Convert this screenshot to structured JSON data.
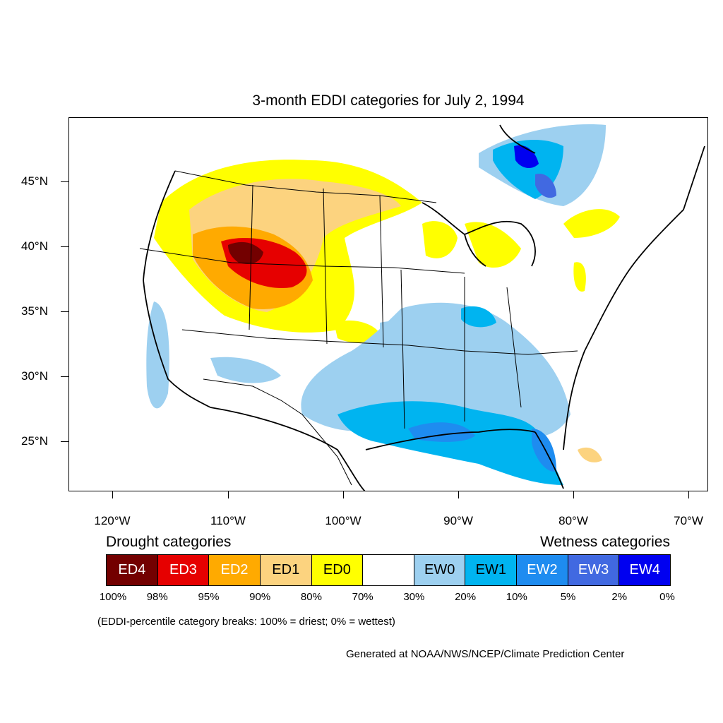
{
  "title": "3-month EDDI categories for July 2, 1994",
  "lat_labels": [
    "45°N",
    "40°N",
    "35°N",
    "30°N",
    "25°N"
  ],
  "lon_labels": [
    "120°W",
    "110°W",
    "100°W",
    "90°W",
    "80°W",
    "70°W"
  ],
  "legend": {
    "drought_heading": "Drought categories",
    "wetness_heading": "Wetness categories",
    "categories": [
      {
        "label": "ED4",
        "color": "#730000"
      },
      {
        "label": "ED3",
        "color": "#e60000"
      },
      {
        "label": "ED2",
        "color": "#ffaa00"
      },
      {
        "label": "ED1",
        "color": "#fcd37f"
      },
      {
        "label": "ED0",
        "color": "#ffff00"
      },
      {
        "label": "",
        "color": "#ffffff"
      },
      {
        "label": "EW0",
        "color": "#9dd0f0"
      },
      {
        "label": "EW1",
        "color": "#00b4f0"
      },
      {
        "label": "EW2",
        "color": "#1e8cf0"
      },
      {
        "label": "EW3",
        "color": "#4169e1"
      },
      {
        "label": "EW4",
        "color": "#0000f0"
      }
    ],
    "breaks": [
      "100%",
      "98%",
      "95%",
      "90%",
      "80%",
      "70%",
      "30%",
      "20%",
      "10%",
      "5%",
      "2%",
      "0%"
    ]
  },
  "note": "(EDDI-percentile category breaks: 100% = driest; 0% = wettest)",
  "credit": "Generated at NOAA/NWS/NCEP/Climate Prediction Center"
}
